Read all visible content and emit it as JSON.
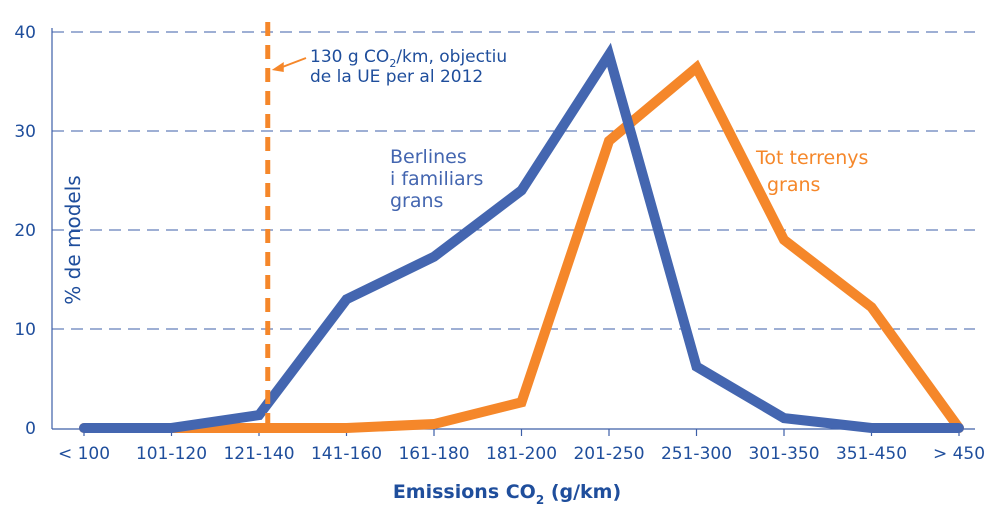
{
  "chart_data": {
    "type": "line",
    "xlabel": "Emissions CO2 (g/km)",
    "xlabel_parts": {
      "prefix": "Emissions CO",
      "sub": "2",
      "suffix": " (g/km)"
    },
    "ylabel": "% de models",
    "ylim": [
      0,
      40
    ],
    "yticks": [
      "0",
      "10",
      "20",
      "30",
      "40"
    ],
    "grid": "horizontal-dashed",
    "categories": [
      "< 100",
      "101-120",
      "121-140",
      "141-160",
      "161-180",
      "181-200",
      "201-250",
      "251-300",
      "301-350",
      "351-450",
      "> 450"
    ],
    "series": [
      {
        "name": "Berlines i familiars grans",
        "label_lines": [
          "Berlines",
          "i familiars",
          "grans"
        ],
        "color": "#4466b0",
        "values": [
          0,
          0,
          1.3,
          13,
          17.3,
          24,
          37.7,
          6.2,
          1,
          0,
          0
        ]
      },
      {
        "name": "Tot terrenys grans",
        "label_lines": [
          "Tot terrenys",
          "grans"
        ],
        "color": "#f5872a",
        "values": [
          0,
          0,
          0,
          0,
          0.4,
          2.6,
          29,
          36.4,
          19,
          12.2,
          0
        ]
      }
    ],
    "reference_line": {
      "category_position": 2.1,
      "color": "#f5872a",
      "label_line1_prefix": "130 g CO",
      "label_line1_sub": "2",
      "label_line1_suffix": "/km, objectiu",
      "label_line2": "de la UE per al 2012"
    }
  }
}
